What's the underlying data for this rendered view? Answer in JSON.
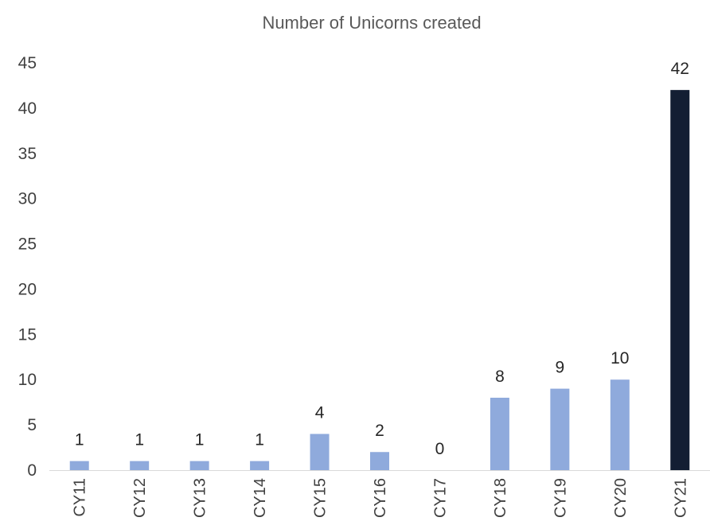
{
  "chart_data": {
    "type": "bar",
    "title": "Number of Unicorns created",
    "xlabel": "",
    "ylabel": "",
    "categories": [
      "CY11",
      "CY12",
      "CY13",
      "CY14",
      "CY15",
      "CY16",
      "CY17",
      "CY18",
      "CY19",
      "CY20",
      "CY21"
    ],
    "values": [
      1,
      1,
      1,
      1,
      4,
      2,
      0,
      8,
      9,
      10,
      42
    ],
    "data_labels": [
      "1",
      "1",
      "1",
      "1",
      "4",
      "2",
      "0",
      "8",
      "9",
      "10",
      "42"
    ],
    "ylim": [
      0,
      45
    ],
    "yticks": [
      "0",
      "5",
      "10",
      "15",
      "20",
      "25",
      "30",
      "35",
      "40",
      "45"
    ],
    "grid": false,
    "legend": "none",
    "colors": {
      "bar": "#8FAADC",
      "highlight_bar": "#131E33",
      "axis": "#D9D9D9"
    },
    "highlight_category": "CY21"
  }
}
